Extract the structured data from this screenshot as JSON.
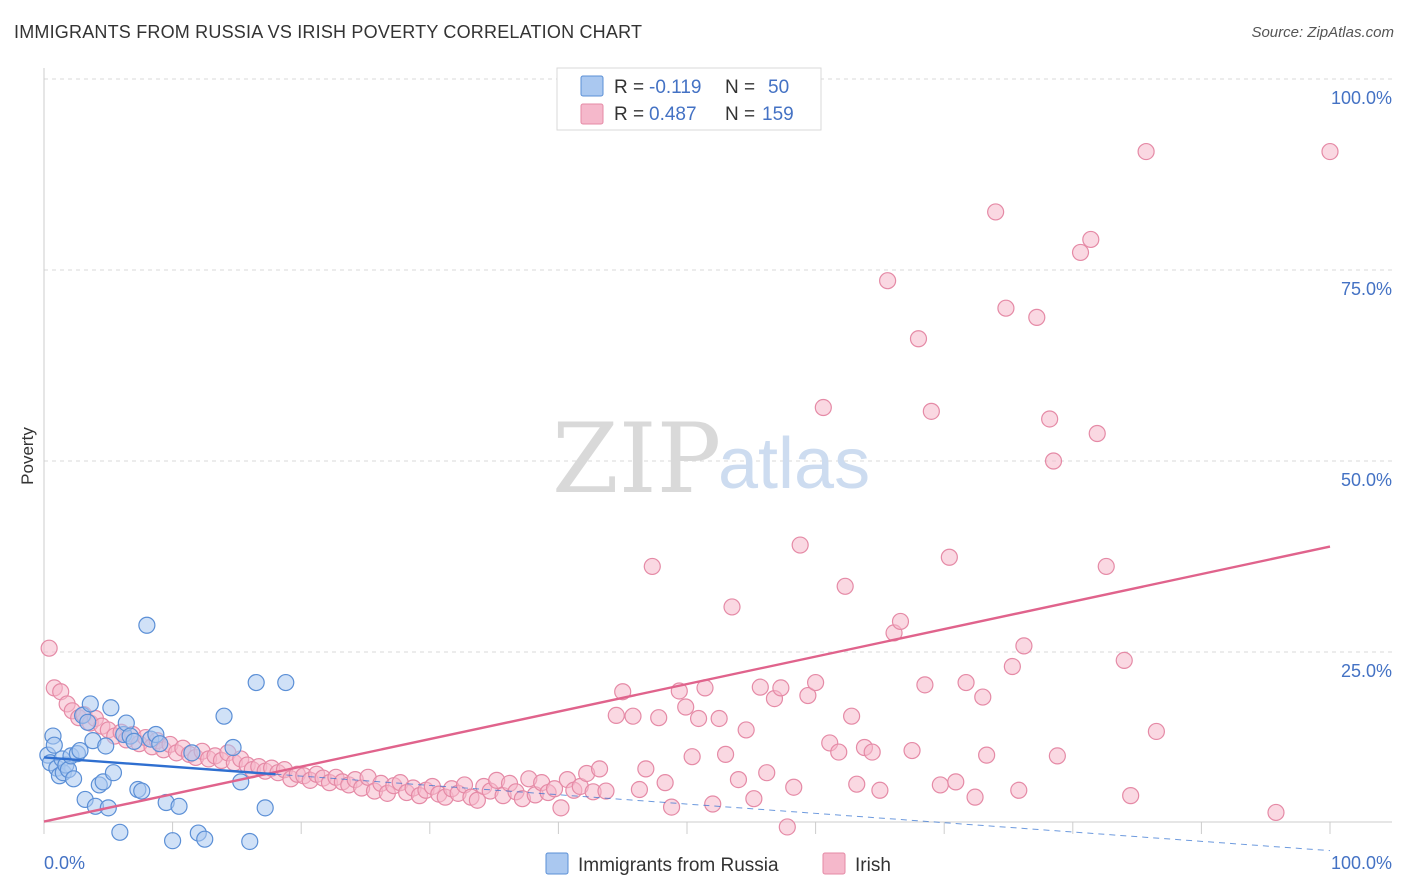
{
  "title": "IMMIGRANTS FROM RUSSIA VS IRISH POVERTY CORRELATION CHART",
  "source": "Source: ZipAtlas.com",
  "watermark": {
    "zip": "ZIP",
    "atlas": "atlas"
  },
  "colors": {
    "blue_fill": "#aac8f0",
    "blue_stroke": "#5b8fd6",
    "blue_line": "#2f6fd0",
    "pink_fill": "#f5b8cb",
    "pink_stroke": "#e58aa6",
    "pink_line": "#e0638c",
    "grid": "#d9d9d9",
    "axis_text": "#4472c4"
  },
  "legend": {
    "rows": [
      {
        "r_label": "R =",
        "r_value": "-0.119",
        "n_label": "N =",
        "n_value": "50",
        "series": "blue"
      },
      {
        "r_label": "R =",
        "r_value": "0.487",
        "n_label": "N =",
        "n_value": "159",
        "series": "pink"
      }
    ]
  },
  "chart_data": {
    "type": "scatter",
    "title": "IMMIGRANTS FROM RUSSIA VS IRISH POVERTY CORRELATION CHART",
    "xlabel": "",
    "ylabel": "Poverty",
    "xlim": [
      0,
      100
    ],
    "ylim": [
      0,
      100
    ],
    "x_tick_labels": [
      "0.0%",
      "100.0%"
    ],
    "y_ticks": [
      25,
      50,
      75,
      100
    ],
    "y_tick_labels": [
      "25.0%",
      "50.0%",
      "75.0%",
      "100.0%"
    ],
    "grid": true,
    "legend_position": "top-center",
    "series": [
      {
        "name": "Immigrants from Russia",
        "color": "blue",
        "trend": {
          "x0": 0,
          "y0": 11.2,
          "x1": 18,
          "y1": 9.0,
          "dashed_to_x": 100,
          "dashed_to_y": -1.0
        },
        "points": [
          [
            0.3,
            11.5
          ],
          [
            0.5,
            10.5
          ],
          [
            0.7,
            14.0
          ],
          [
            0.8,
            12.8
          ],
          [
            1.0,
            9.8
          ],
          [
            1.2,
            8.8
          ],
          [
            1.4,
            11.0
          ],
          [
            1.5,
            9.2
          ],
          [
            1.7,
            10.2
          ],
          [
            1.9,
            9.6
          ],
          [
            2.1,
            11.4
          ],
          [
            2.3,
            8.4
          ],
          [
            2.6,
            11.7
          ],
          [
            2.8,
            12.1
          ],
          [
            3.0,
            16.7
          ],
          [
            3.2,
            5.7
          ],
          [
            3.4,
            15.8
          ],
          [
            3.6,
            18.2
          ],
          [
            3.8,
            13.4
          ],
          [
            4.0,
            4.8
          ],
          [
            4.3,
            7.6
          ],
          [
            4.6,
            8.0
          ],
          [
            4.8,
            12.7
          ],
          [
            5.0,
            4.6
          ],
          [
            5.2,
            17.7
          ],
          [
            5.4,
            9.2
          ],
          [
            5.9,
            1.4
          ],
          [
            6.2,
            14.2
          ],
          [
            6.4,
            15.7
          ],
          [
            6.7,
            14.0
          ],
          [
            7.0,
            13.3
          ],
          [
            7.3,
            7.0
          ],
          [
            7.6,
            6.8
          ],
          [
            8.0,
            28.5
          ],
          [
            8.3,
            13.6
          ],
          [
            8.7,
            14.2
          ],
          [
            9.0,
            13.0
          ],
          [
            9.5,
            5.3
          ],
          [
            10.0,
            0.3
          ],
          [
            10.5,
            4.8
          ],
          [
            11.5,
            11.8
          ],
          [
            12.0,
            1.3
          ],
          [
            12.5,
            0.5
          ],
          [
            14.0,
            16.6
          ],
          [
            14.7,
            12.5
          ],
          [
            15.3,
            8.0
          ],
          [
            16.0,
            0.2
          ],
          [
            16.5,
            21.0
          ],
          [
            17.2,
            4.6
          ],
          [
            18.8,
            21.0
          ]
        ]
      },
      {
        "name": "Irish",
        "color": "pink",
        "trend": {
          "x0": 0,
          "y0": 2.8,
          "x1": 100,
          "y1": 38.8
        },
        "points": [
          [
            0.4,
            25.5
          ],
          [
            0.8,
            20.3
          ],
          [
            1.3,
            19.8
          ],
          [
            1.8,
            18.2
          ],
          [
            2.2,
            17.3
          ],
          [
            2.7,
            16.4
          ],
          [
            3.1,
            16.8
          ],
          [
            3.6,
            15.7
          ],
          [
            4.0,
            16.3
          ],
          [
            4.5,
            15.3
          ],
          [
            5.0,
            14.8
          ],
          [
            5.5,
            14.0
          ],
          [
            6.0,
            14.5
          ],
          [
            6.4,
            13.5
          ],
          [
            6.9,
            14.2
          ],
          [
            7.4,
            13.0
          ],
          [
            7.9,
            13.8
          ],
          [
            8.4,
            12.6
          ],
          [
            8.8,
            13.4
          ],
          [
            9.3,
            12.2
          ],
          [
            9.8,
            12.9
          ],
          [
            10.3,
            11.8
          ],
          [
            10.8,
            12.4
          ],
          [
            11.3,
            11.6
          ],
          [
            11.8,
            11.2
          ],
          [
            12.3,
            12.0
          ],
          [
            12.8,
            11.0
          ],
          [
            13.3,
            11.4
          ],
          [
            13.8,
            10.8
          ],
          [
            14.3,
            11.8
          ],
          [
            14.8,
            10.5
          ],
          [
            15.3,
            11.0
          ],
          [
            15.8,
            10.2
          ],
          [
            16.2,
            9.6
          ],
          [
            16.7,
            10.0
          ],
          [
            17.2,
            9.4
          ],
          [
            17.7,
            9.8
          ],
          [
            18.2,
            9.2
          ],
          [
            18.7,
            9.6
          ],
          [
            19.2,
            8.4
          ],
          [
            19.7,
            9.0
          ],
          [
            20.2,
            8.8
          ],
          [
            20.7,
            8.2
          ],
          [
            21.2,
            9.0
          ],
          [
            21.7,
            8.5
          ],
          [
            22.2,
            7.9
          ],
          [
            22.7,
            8.6
          ],
          [
            23.2,
            8.0
          ],
          [
            23.7,
            7.6
          ],
          [
            24.2,
            8.3
          ],
          [
            24.7,
            7.2
          ],
          [
            25.2,
            8.6
          ],
          [
            25.7,
            6.8
          ],
          [
            26.2,
            7.8
          ],
          [
            26.7,
            6.5
          ],
          [
            27.2,
            7.5
          ],
          [
            27.7,
            7.9
          ],
          [
            28.2,
            6.6
          ],
          [
            28.7,
            7.2
          ],
          [
            29.2,
            6.2
          ],
          [
            29.7,
            6.9
          ],
          [
            30.2,
            7.4
          ],
          [
            30.7,
            6.4
          ],
          [
            31.2,
            6.0
          ],
          [
            31.7,
            7.1
          ],
          [
            32.2,
            6.5
          ],
          [
            32.7,
            7.6
          ],
          [
            33.2,
            6.0
          ],
          [
            33.7,
            5.6
          ],
          [
            34.2,
            7.4
          ],
          [
            34.7,
            6.8
          ],
          [
            35.2,
            8.2
          ],
          [
            35.7,
            6.2
          ],
          [
            36.2,
            7.8
          ],
          [
            36.7,
            6.7
          ],
          [
            37.2,
            5.8
          ],
          [
            37.7,
            8.4
          ],
          [
            38.2,
            6.3
          ],
          [
            38.7,
            7.9
          ],
          [
            39.2,
            6.6
          ],
          [
            39.7,
            7.1
          ],
          [
            40.2,
            4.6
          ],
          [
            40.7,
            8.3
          ],
          [
            41.2,
            6.9
          ],
          [
            41.7,
            7.4
          ],
          [
            42.2,
            9.1
          ],
          [
            42.7,
            6.7
          ],
          [
            43.2,
            9.7
          ],
          [
            43.7,
            6.8
          ],
          [
            44.5,
            16.7
          ],
          [
            45.0,
            19.8
          ],
          [
            45.8,
            16.6
          ],
          [
            46.3,
            7.0
          ],
          [
            46.8,
            9.7
          ],
          [
            47.3,
            36.2
          ],
          [
            47.8,
            16.4
          ],
          [
            48.3,
            7.9
          ],
          [
            48.8,
            4.7
          ],
          [
            49.4,
            19.9
          ],
          [
            49.9,
            17.8
          ],
          [
            50.4,
            11.3
          ],
          [
            50.9,
            16.3
          ],
          [
            51.4,
            20.3
          ],
          [
            52.0,
            5.1
          ],
          [
            52.5,
            16.3
          ],
          [
            53.0,
            11.6
          ],
          [
            53.5,
            30.9
          ],
          [
            54.0,
            8.3
          ],
          [
            54.6,
            14.8
          ],
          [
            55.2,
            5.8
          ],
          [
            55.7,
            20.4
          ],
          [
            56.2,
            9.2
          ],
          [
            56.8,
            18.9
          ],
          [
            57.3,
            20.3
          ],
          [
            57.8,
            2.1
          ],
          [
            58.3,
            7.3
          ],
          [
            58.8,
            39.0
          ],
          [
            59.4,
            19.3
          ],
          [
            60.0,
            21.0
          ],
          [
            60.6,
            57.0
          ],
          [
            61.1,
            13.1
          ],
          [
            61.8,
            11.9
          ],
          [
            62.3,
            33.6
          ],
          [
            62.8,
            16.6
          ],
          [
            63.2,
            7.7
          ],
          [
            63.8,
            12.5
          ],
          [
            64.4,
            11.9
          ],
          [
            65.0,
            6.9
          ],
          [
            65.6,
            73.6
          ],
          [
            66.1,
            27.5
          ],
          [
            66.6,
            29.0
          ],
          [
            67.5,
            12.1
          ],
          [
            68.0,
            66.0
          ],
          [
            68.5,
            20.7
          ],
          [
            69.0,
            56.5
          ],
          [
            69.7,
            7.6
          ],
          [
            70.4,
            37.4
          ],
          [
            70.9,
            8.0
          ],
          [
            71.7,
            21.0
          ],
          [
            72.4,
            6.0
          ],
          [
            73.0,
            19.1
          ],
          [
            73.3,
            11.5
          ],
          [
            74.0,
            82.6
          ],
          [
            74.8,
            70.0
          ],
          [
            75.3,
            23.1
          ],
          [
            75.8,
            6.9
          ],
          [
            76.2,
            25.8
          ],
          [
            77.2,
            68.8
          ],
          [
            78.2,
            55.5
          ],
          [
            78.5,
            50.0
          ],
          [
            78.8,
            11.4
          ],
          [
            80.6,
            77.3
          ],
          [
            81.4,
            79.0
          ],
          [
            81.9,
            53.6
          ],
          [
            82.6,
            36.2
          ],
          [
            84.0,
            23.9
          ],
          [
            84.5,
            6.2
          ],
          [
            85.7,
            90.5
          ],
          [
            86.5,
            14.6
          ],
          [
            95.8,
            4.0
          ],
          [
            100.0,
            90.5
          ]
        ]
      }
    ]
  },
  "bottom_legend": [
    {
      "label": "Immigrants from Russia",
      "series": "blue"
    },
    {
      "label": "Irish",
      "series": "pink"
    }
  ]
}
